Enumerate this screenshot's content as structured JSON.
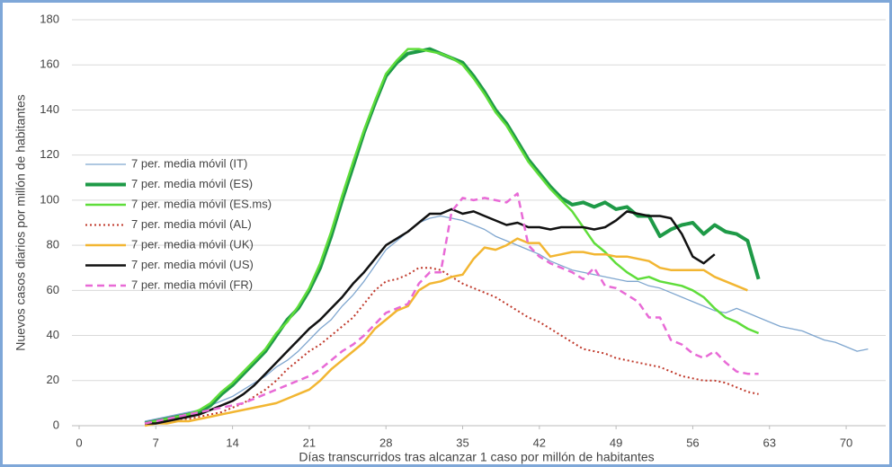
{
  "chart_data": {
    "type": "line",
    "x_label": "Días transcurridos tras alcanzar 1 caso por millón de habitantes",
    "y_label": "Nuevos casos diarios por millón de habitantes",
    "x": [
      6,
      7,
      8,
      9,
      10,
      11,
      12,
      13,
      14,
      15,
      16,
      17,
      18,
      19,
      20,
      21,
      22,
      23,
      24,
      25,
      26,
      27,
      28,
      29,
      30,
      31,
      32,
      33,
      34,
      35,
      36,
      37,
      38,
      39,
      40,
      41,
      42,
      43,
      44,
      45,
      46,
      47,
      48,
      49,
      50,
      51,
      52,
      53,
      54,
      55,
      56,
      57,
      58,
      59,
      60,
      61,
      62,
      63,
      64,
      65,
      66,
      67,
      68,
      69,
      70,
      71,
      72
    ],
    "xlim": [
      -1,
      74
    ],
    "xticks": [
      0,
      7,
      14,
      21,
      28,
      35,
      42,
      49,
      56,
      63,
      70
    ],
    "ylim": [
      0,
      180
    ],
    "yticks": [
      0,
      20,
      40,
      60,
      80,
      100,
      120,
      140,
      160,
      180
    ],
    "grid": true,
    "series": [
      {
        "name": "7 per. media móvil (IT)",
        "color": "#7fa6cf",
        "width": 1.3,
        "style": "solid",
        "values": [
          2,
          3,
          4,
          5,
          6,
          7,
          9,
          11,
          13,
          16,
          19,
          22,
          26,
          29,
          33,
          38,
          43,
          47,
          53,
          58,
          64,
          71,
          78,
          82,
          86,
          90,
          92,
          93,
          92,
          91,
          89,
          87,
          84,
          82,
          80,
          78,
          76,
          73,
          71,
          69,
          68,
          67,
          66,
          65,
          64,
          64,
          62,
          61,
          59,
          57,
          55,
          53,
          51,
          50,
          52,
          50,
          48,
          46,
          44,
          43,
          42,
          40,
          38,
          37,
          35,
          33,
          34
        ]
      },
      {
        "name": "7 per. media móvil (ES)",
        "color": "#1e9a47",
        "width": 4,
        "style": "solid",
        "values": [
          1,
          2,
          3,
          4,
          5,
          6,
          9,
          14,
          18,
          23,
          28,
          33,
          40,
          47,
          52,
          60,
          70,
          84,
          100,
          115,
          130,
          143,
          155,
          161,
          165,
          166,
          167,
          165,
          163,
          161,
          155,
          148,
          140,
          134,
          126,
          118,
          112,
          106,
          101,
          98,
          99,
          97,
          99,
          96,
          97,
          93,
          93,
          84,
          87,
          89,
          90,
          85,
          89,
          86,
          85,
          82,
          65,
          null,
          null,
          null,
          null,
          null,
          null,
          null,
          null,
          null,
          null
        ]
      },
      {
        "name": "7 per. media móvil (ES.ms)",
        "color": "#5fdd3a",
        "width": 2.5,
        "style": "solid",
        "values": [
          1,
          2,
          3,
          4,
          5,
          7,
          10,
          15,
          19,
          24,
          29,
          34,
          41,
          46,
          53,
          61,
          72,
          86,
          102,
          117,
          131,
          144,
          156,
          162,
          167,
          167,
          166,
          165,
          163,
          160,
          154,
          147,
          139,
          133,
          125,
          117,
          111,
          105,
          100,
          95,
          88,
          81,
          77,
          72,
          68,
          65,
          66,
          64,
          63,
          62,
          60,
          57,
          52,
          48,
          46,
          43,
          41,
          null,
          null,
          null,
          null,
          null,
          null,
          null,
          null,
          null,
          null
        ]
      },
      {
        "name": "7 per. media móvil (AL)",
        "color": "#c0392b",
        "width": 2,
        "style": "dotted",
        "values": [
          1,
          1,
          2,
          3,
          3,
          4,
          5,
          6,
          8,
          10,
          13,
          16,
          20,
          25,
          29,
          33,
          36,
          40,
          44,
          48,
          54,
          60,
          64,
          65,
          67,
          70,
          70,
          69,
          66,
          63,
          61,
          59,
          57,
          54,
          51,
          48,
          46,
          43,
          40,
          37,
          34,
          33,
          32,
          30,
          29,
          28,
          27,
          26,
          24,
          22,
          21,
          20,
          20,
          19,
          17,
          15,
          14,
          null,
          null,
          null,
          null,
          null,
          null,
          null,
          null,
          null,
          null
        ]
      },
      {
        "name": "7 per. media móvil (UK)",
        "color": "#f2b632",
        "width": 2.5,
        "style": "solid",
        "values": [
          0,
          1,
          1,
          2,
          2,
          3,
          4,
          5,
          6,
          7,
          8,
          9,
          10,
          12,
          14,
          16,
          20,
          25,
          29,
          33,
          37,
          43,
          47,
          51,
          53,
          60,
          63,
          64,
          66,
          67,
          74,
          79,
          78,
          80,
          83,
          81,
          81,
          75,
          76,
          77,
          77,
          76,
          76,
          75,
          75,
          74,
          73,
          70,
          69,
          69,
          69,
          69,
          66,
          64,
          62,
          60,
          null,
          null,
          null,
          null,
          null,
          null,
          null,
          null,
          null,
          null,
          null
        ]
      },
      {
        "name": "7 per. media móvil (US)",
        "color": "#111111",
        "width": 2.5,
        "style": "solid",
        "values": [
          1,
          1,
          2,
          3,
          4,
          5,
          7,
          9,
          11,
          14,
          18,
          23,
          28,
          33,
          38,
          43,
          47,
          52,
          57,
          63,
          68,
          74,
          80,
          83,
          86,
          90,
          94,
          94,
          96,
          94,
          95,
          93,
          91,
          89,
          90,
          88,
          88,
          87,
          88,
          88,
          88,
          87,
          88,
          91,
          95,
          94,
          93,
          93,
          92,
          85,
          75,
          72,
          76,
          null,
          null,
          null,
          null,
          null,
          null,
          null,
          null,
          null,
          null,
          null,
          null,
          null,
          null
        ]
      },
      {
        "name": "7 per. media móvil (FR)",
        "color": "#e86ad6",
        "width": 2.5,
        "style": "dashed",
        "values": [
          1,
          2,
          3,
          4,
          5,
          6,
          7,
          8,
          9,
          10,
          12,
          14,
          16,
          18,
          20,
          22,
          25,
          29,
          33,
          36,
          40,
          45,
          50,
          52,
          54,
          63,
          68,
          68,
          95,
          101,
          100,
          101,
          100,
          99,
          103,
          80,
          75,
          72,
          70,
          68,
          65,
          70,
          62,
          61,
          58,
          55,
          48,
          48,
          38,
          36,
          32,
          30,
          33,
          28,
          24,
          23,
          23,
          null,
          null,
          null,
          null,
          null,
          null,
          null,
          null,
          null,
          null
        ]
      }
    ]
  }
}
